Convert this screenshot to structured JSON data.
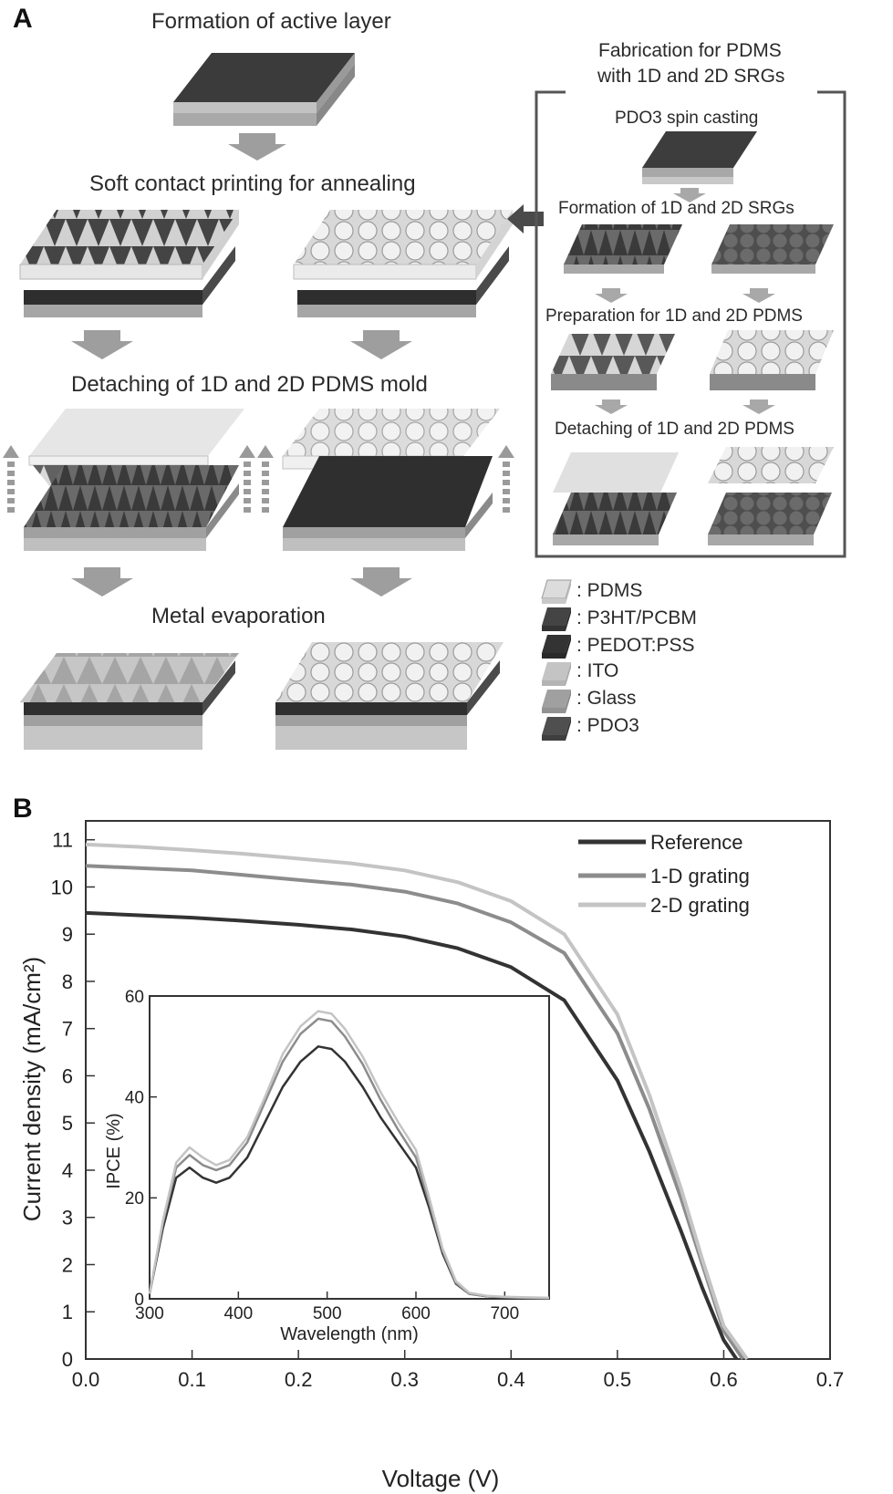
{
  "panel_a": {
    "letter": "A",
    "steps": {
      "active_layer": "Formation of active layer",
      "soft_contact": "Soft contact printing for annealing",
      "detaching": "Detaching of 1D and 2D PDMS mold",
      "metal": "Metal evaporation"
    },
    "side_box": {
      "title_line1": "Fabrication for PDMS",
      "title_line2": "with 1D and 2D SRGs",
      "step1": "PDO3 spin casting",
      "step2": "Formation of 1D and 2D SRGs",
      "step3": "Preparation for 1D and 2D PDMS",
      "step4": "Detaching of 1D and 2D PDMS"
    },
    "legend": [
      {
        "label": ": PDMS",
        "color": "#d8d8d8"
      },
      {
        "label": ": P3HT/PCBM",
        "color": "#3c3c3c"
      },
      {
        "label": ": PEDOT:PSS",
        "color": "#2e2e2e"
      },
      {
        "label": ": ITO",
        "color": "#bdbdbd"
      },
      {
        "label": ": Glass",
        "color": "#9a9a9a"
      },
      {
        "label": ": PDO3",
        "color": "#4a4a4a"
      }
    ]
  },
  "panel_b": {
    "letter": "B"
  },
  "chart_data": [
    {
      "type": "line",
      "xlabel": "Voltage (V)",
      "ylabel": "Current density (mA/cm²)",
      "xlim": [
        0.0,
        0.7
      ],
      "ylim": [
        0,
        11.4
      ],
      "xticks": [
        "0.0",
        "0.1",
        "0.2",
        "0.3",
        "0.4",
        "0.5",
        "0.6",
        "0.7"
      ],
      "yticks": [
        "0",
        "1",
        "2",
        "3",
        "4",
        "5",
        "6",
        "7",
        "8",
        "9",
        "10",
        "11"
      ],
      "legend_position": "top-right",
      "series": [
        {
          "name": "Reference",
          "color": "#333333",
          "x": [
            0.0,
            0.05,
            0.1,
            0.15,
            0.2,
            0.25,
            0.3,
            0.35,
            0.4,
            0.45,
            0.5,
            0.53,
            0.56,
            0.58,
            0.6,
            0.612
          ],
          "y": [
            9.45,
            9.4,
            9.35,
            9.28,
            9.2,
            9.1,
            8.95,
            8.7,
            8.3,
            7.6,
            5.9,
            4.4,
            2.7,
            1.5,
            0.4,
            0.0
          ]
        },
        {
          "name": "1-D grating",
          "color": "#8c8c8c",
          "x": [
            0.0,
            0.05,
            0.1,
            0.15,
            0.2,
            0.25,
            0.3,
            0.35,
            0.4,
            0.45,
            0.5,
            0.53,
            0.56,
            0.58,
            0.6,
            0.618
          ],
          "y": [
            10.45,
            10.4,
            10.35,
            10.25,
            10.15,
            10.05,
            9.9,
            9.65,
            9.25,
            8.6,
            6.9,
            5.3,
            3.4,
            2.0,
            0.6,
            0.0
          ]
        },
        {
          "name": "2-D grating",
          "color": "#c4c4c4",
          "x": [
            0.0,
            0.05,
            0.1,
            0.15,
            0.2,
            0.25,
            0.3,
            0.35,
            0.4,
            0.45,
            0.5,
            0.53,
            0.56,
            0.58,
            0.6,
            0.622
          ],
          "y": [
            10.9,
            10.85,
            10.78,
            10.7,
            10.6,
            10.5,
            10.35,
            10.1,
            9.7,
            9.0,
            7.3,
            5.6,
            3.6,
            2.1,
            0.7,
            0.0
          ]
        }
      ]
    },
    {
      "type": "line",
      "xlabel": "Wavelength (nm)",
      "ylabel": "IPCE (%)",
      "xlim": [
        300,
        750
      ],
      "ylim": [
        0,
        60
      ],
      "xticks": [
        "300",
        "400",
        "500",
        "600",
        "700"
      ],
      "yticks": [
        "0",
        "20",
        "40",
        "60"
      ],
      "series": [
        {
          "name": "Reference",
          "color": "#333333",
          "x": [
            300,
            315,
            330,
            345,
            360,
            375,
            390,
            410,
            430,
            450,
            470,
            490,
            505,
            520,
            540,
            560,
            580,
            600,
            615,
            630,
            645,
            660,
            680,
            700,
            720,
            750
          ],
          "y": [
            1,
            14,
            24,
            26,
            24,
            23,
            24,
            28,
            35,
            42,
            47,
            50,
            49.5,
            47,
            42,
            36,
            31,
            26,
            18,
            9,
            3,
            1,
            0.5,
            0.3,
            0.2,
            0.1
          ]
        },
        {
          "name": "1-D grating",
          "color": "#8c8c8c",
          "x": [
            300,
            315,
            330,
            345,
            360,
            375,
            390,
            410,
            430,
            450,
            470,
            490,
            505,
            520,
            540,
            560,
            580,
            600,
            615,
            630,
            645,
            660,
            680,
            700,
            720,
            750
          ],
          "y": [
            1,
            15,
            26,
            28.5,
            26.5,
            25.5,
            26.5,
            31,
            39,
            47,
            52.5,
            55.5,
            55,
            52,
            46.5,
            39.5,
            33.5,
            28,
            19,
            9.5,
            3.2,
            1,
            0.5,
            0.3,
            0.2,
            0.1
          ]
        },
        {
          "name": "2-D grating",
          "color": "#c4c4c4",
          "x": [
            300,
            315,
            330,
            345,
            360,
            375,
            390,
            410,
            430,
            450,
            470,
            490,
            505,
            520,
            540,
            560,
            580,
            600,
            615,
            630,
            645,
            660,
            680,
            700,
            720,
            750
          ],
          "y": [
            1,
            15.5,
            27,
            30,
            28,
            26.5,
            27.5,
            32,
            40,
            48.5,
            54,
            57,
            56.5,
            53.5,
            48,
            41,
            35,
            29.5,
            20,
            10,
            3.5,
            1.2,
            0.6,
            0.4,
            0.3,
            0.2
          ]
        }
      ]
    }
  ]
}
